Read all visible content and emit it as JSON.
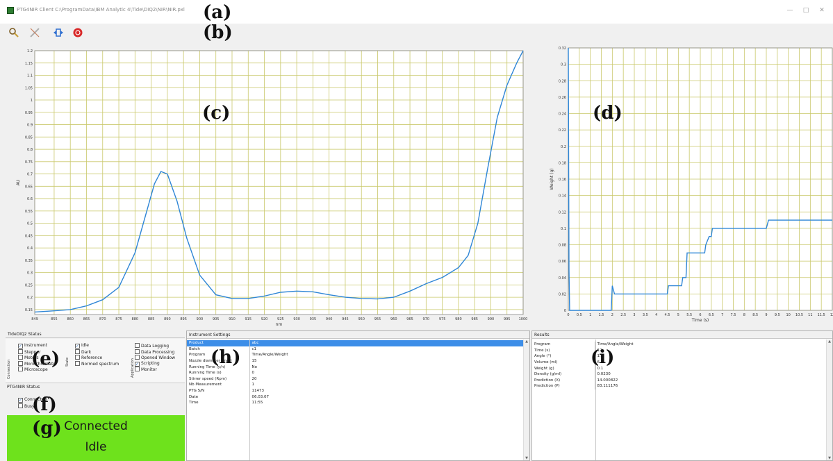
{
  "window": {
    "title": "PTG4NIR Client C:\\ProgramData\\IBM Analytic 4\\Tide\\DIQ2\\NIR\\NIR.pxl",
    "minimize": "—",
    "maximize": "□",
    "close": "✕"
  },
  "annotations": {
    "a": "(a)",
    "b": "(b)",
    "c": "(c)",
    "d": "(d)",
    "e": "(e)",
    "f": "(f)",
    "g": "(g)",
    "h": "(h)",
    "i": "(i)"
  },
  "toolbar": [
    {
      "name": "search-icon",
      "color": "#c8a03c"
    },
    {
      "name": "settings-icon",
      "color": "#b0b0b0"
    },
    {
      "name": "connect-icon",
      "color": "#2f6fd0"
    },
    {
      "name": "stop-icon",
      "color": "#d82828"
    }
  ],
  "chart_data": [
    {
      "type": "line",
      "title": "",
      "xlabel": "nm",
      "ylabel": "AU",
      "xlim": [
        849,
        1000
      ],
      "ylim": [
        0.13,
        1.2
      ],
      "grid": true,
      "x_ticks": [
        "849",
        "855",
        "860",
        "865",
        "870",
        "875",
        "880",
        "885",
        "890",
        "895",
        "900",
        "905",
        "910",
        "915",
        "920",
        "925",
        "930",
        "935",
        "940",
        "945",
        "950",
        "955",
        "960",
        "965",
        "970",
        "975",
        "980",
        "985",
        "990",
        "995",
        "1000"
      ],
      "y_ticks": [
        "0.15",
        "0.2",
        "0.25",
        "0.3",
        "0.35",
        "0.4",
        "0.45",
        "0.5",
        "0.55",
        "0.6",
        "0.65",
        "0.7",
        "0.75",
        "0.8",
        "0.85",
        "0.9",
        "0.95",
        "1",
        "1.05",
        "1.1",
        "1.15",
        "1.2"
      ],
      "series": [
        {
          "x": [
            849,
            855,
            860,
            865,
            870,
            875,
            880,
            883,
            886,
            888,
            890,
            893,
            896,
            900,
            905,
            910,
            915,
            920,
            925,
            930,
            935,
            940,
            945,
            950,
            955,
            960,
            965,
            970,
            975,
            980,
            983,
            986,
            989,
            992,
            995,
            998,
            1000
          ],
          "y": [
            0.14,
            0.145,
            0.15,
            0.165,
            0.19,
            0.24,
            0.38,
            0.52,
            0.66,
            0.71,
            0.7,
            0.59,
            0.44,
            0.29,
            0.21,
            0.195,
            0.195,
            0.205,
            0.22,
            0.225,
            0.222,
            0.21,
            0.2,
            0.195,
            0.193,
            0.2,
            0.225,
            0.255,
            0.28,
            0.32,
            0.37,
            0.5,
            0.72,
            0.93,
            1.06,
            1.15,
            1.2
          ]
        }
      ]
    },
    {
      "type": "line",
      "title": "",
      "xlabel": "Time (s)",
      "ylabel": "Weight (g)",
      "xlim": [
        0,
        12
      ],
      "ylim": [
        0,
        0.32
      ],
      "grid": true,
      "x_ticks": [
        "0",
        "0.5",
        "1",
        "1.5",
        "2",
        "2.5",
        "3",
        "3.5",
        "4",
        "4.5",
        "5",
        "5.5",
        "6",
        "6.5",
        "7",
        "7.5",
        "8",
        "8.5",
        "9",
        "9.5",
        "10",
        "10.5",
        "11",
        "11.5",
        "12"
      ],
      "y_ticks": [
        "0",
        "0.02",
        "0.04",
        "0.06",
        "0.08",
        "0.1",
        "0.12",
        "0.14",
        "0.16",
        "0.18",
        "0.2",
        "0.22",
        "0.24",
        "0.26",
        "0.28",
        "0.3",
        "0.32"
      ],
      "series": [
        {
          "x": [
            0,
            0.03,
            0.06,
            1.85,
            1.95,
            2.0,
            2.1,
            4.5,
            4.55,
            4.9,
            4.95,
            5.15,
            5.2,
            5.35,
            5.4,
            5.95,
            6.0,
            6.2,
            6.25,
            6.4,
            6.45,
            6.5,
            6.55,
            9.0,
            9.1,
            9.2,
            12
          ],
          "y": [
            0.32,
            0.05,
            0.0,
            0.0,
            0.0,
            0.03,
            0.02,
            0.02,
            0.03,
            0.03,
            0.03,
            0.03,
            0.04,
            0.04,
            0.07,
            0.07,
            0.07,
            0.07,
            0.08,
            0.09,
            0.09,
            0.09,
            0.1,
            0.1,
            0.11,
            0.11,
            0.11
          ]
        }
      ]
    }
  ],
  "status_panel": {
    "header": "TideDIQ2 Status",
    "groups": {
      "connection": "Connection",
      "state": "State",
      "application": "Application"
    },
    "connection_items": [
      {
        "label": "Instrument",
        "checked": true
      },
      {
        "label": "Stepper",
        "checked": false
      },
      {
        "label": "Motors",
        "checked": false
      },
      {
        "label": "Monochromator",
        "checked": false
      },
      {
        "label": "Microscope",
        "checked": false
      }
    ],
    "state_items": [
      {
        "label": "Idle",
        "checked": true
      },
      {
        "label": "Dark",
        "checked": false
      },
      {
        "label": "Reference",
        "checked": false
      },
      {
        "label": "Normed spectrum",
        "checked": false
      }
    ],
    "application_items": [
      {
        "label": "Data Logging",
        "checked": false
      },
      {
        "label": "Data Processing",
        "checked": false
      },
      {
        "label": "Opened Window",
        "checked": false
      },
      {
        "label": "Scripting",
        "checked": true
      },
      {
        "label": "Monitor",
        "checked": false
      }
    ],
    "nir_header": "PTG4NIR Status",
    "nir_items": [
      {
        "label": "Connected",
        "checked": true
      },
      {
        "label": "Busy",
        "checked": false
      }
    ],
    "status_line1": "Connected",
    "status_line2": "Idle",
    "status_color": "#6ee21c"
  },
  "instrument_settings": {
    "header": "Instrument Settings",
    "rows": [
      {
        "key": "Product",
        "value": "abc"
      },
      {
        "key": "Batch",
        "value": "c1"
      },
      {
        "key": "Program",
        "value": "Time/Angle/Weight"
      },
      {
        "key": "Nozzle diameter (mm)",
        "value": "15"
      },
      {
        "key": "Running Time (y/n)",
        "value": "No"
      },
      {
        "key": "Running Time (s)",
        "value": "0"
      },
      {
        "key": "Stirrer speed (Rpm)",
        "value": "20"
      },
      {
        "key": "Nb Measurement",
        "value": "1"
      },
      {
        "key": "PTG S/N",
        "value": "11473"
      },
      {
        "key": "Date",
        "value": "06.03.07"
      },
      {
        "key": "Time",
        "value": "11:55"
      }
    ]
  },
  "results": {
    "header": "Results",
    "rows": [
      {
        "key": "Program",
        "value": "Time/Angle/Weight"
      },
      {
        "key": "Time (s)",
        "value": "12"
      },
      {
        "key": "Angle (°)",
        "value": "1.5"
      },
      {
        "key": "Volume (ml)",
        "value": "6.5"
      },
      {
        "key": "Weight (g)",
        "value": "0.1"
      },
      {
        "key": "Density (g/ml)",
        "value": "0.0230"
      },
      {
        "key": "Prediction (X)",
        "value": "14.000822"
      },
      {
        "key": "Prediction (P)",
        "value": "83.111176"
      }
    ]
  }
}
